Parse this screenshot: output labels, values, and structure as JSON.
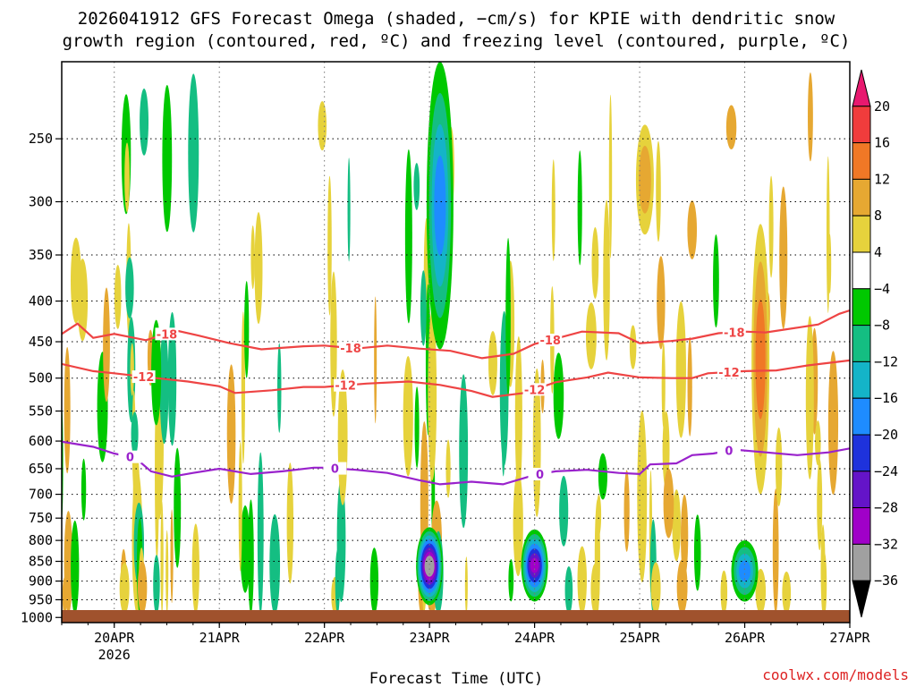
{
  "title": {
    "line1": "2026041912 GFS Forecast Omega (shaded, −cm/s) for KPIE with dendritic snow",
    "line2": "growth region (contoured, red, ºC) and freezing level (contoured, purple, ºC)"
  },
  "credit": "coolwx.com/models",
  "colors": {
    "dgz": "#ee4444",
    "freezing": "#9922cc",
    "ground": "#a0522d"
  },
  "chart_data": {
    "type": "heatmap",
    "xlabel": "Forecast Time (UTC)",
    "ylabel": "",
    "x_ticks": [
      {
        "day": 1,
        "label": "20APR",
        "sub": "2026"
      },
      {
        "day": 2,
        "label": "21APR",
        "sub": ""
      },
      {
        "day": 3,
        "label": "22APR",
        "sub": ""
      },
      {
        "day": 4,
        "label": "23APR",
        "sub": ""
      },
      {
        "day": 5,
        "label": "24APR",
        "sub": ""
      },
      {
        "day": 6,
        "label": "25APR",
        "sub": ""
      },
      {
        "day": 7,
        "label": "26APR",
        "sub": ""
      },
      {
        "day": 8,
        "label": "27APR",
        "sub": ""
      }
    ],
    "xlim_days": [
      0.5,
      8.0
    ],
    "y_ticks": [
      250,
      300,
      350,
      400,
      450,
      500,
      550,
      600,
      650,
      700,
      750,
      800,
      850,
      900,
      950,
      1000
    ],
    "ylim_hpa": [
      200,
      1015
    ],
    "y_scale": "log",
    "grid": true,
    "colorbar": {
      "labels": [
        "20",
        "16",
        "12",
        "8",
        "4",
        "−4",
        "−8",
        "−12",
        "−16",
        "−20",
        "−24",
        "−28",
        "−32",
        "−36"
      ],
      "colors": [
        "#e8196f",
        "#f03c3c",
        "#f07826",
        "#e6a832",
        "#e6d23c",
        "#ffffff",
        "#00c800",
        "#14be82",
        "#14b4c8",
        "#1e8cff",
        "#1e32dc",
        "#6414c8",
        "#a000c8",
        "#a0a0a0",
        "#000000"
      ]
    },
    "contours": [
      {
        "label": "-18",
        "color": "#ee4444",
        "points": [
          [
            0.5,
            440
          ],
          [
            0.65,
            427
          ],
          [
            0.8,
            445
          ],
          [
            1.0,
            440
          ],
          [
            1.3,
            448
          ],
          [
            1.6,
            436
          ],
          [
            1.8,
            442
          ],
          [
            2.1,
            452
          ],
          [
            2.4,
            460
          ],
          [
            2.8,
            456
          ],
          [
            3.0,
            455
          ],
          [
            3.3,
            459
          ],
          [
            3.6,
            455
          ],
          [
            3.9,
            459
          ],
          [
            4.2,
            462
          ],
          [
            4.5,
            472
          ],
          [
            4.8,
            466
          ],
          [
            5.0,
            453
          ],
          [
            5.2,
            446
          ],
          [
            5.45,
            437
          ],
          [
            5.8,
            439
          ],
          [
            6.0,
            452
          ],
          [
            6.3,
            449
          ],
          [
            6.5,
            446
          ],
          [
            6.75,
            439
          ],
          [
            7.0,
            437
          ],
          [
            7.2,
            438
          ],
          [
            7.5,
            432
          ],
          [
            7.7,
            428
          ],
          [
            7.9,
            415
          ],
          [
            8.0,
            411
          ]
        ],
        "label_at": [
          1.5,
          3.25,
          5.15,
          6.9
        ]
      },
      {
        "label": "-12",
        "color": "#ee4444",
        "points": [
          [
            0.5,
            480
          ],
          [
            0.8,
            490
          ],
          [
            1.0,
            493
          ],
          [
            1.4,
            500
          ],
          [
            1.7,
            505
          ],
          [
            2.0,
            512
          ],
          [
            2.15,
            522
          ],
          [
            2.5,
            518
          ],
          [
            2.8,
            513
          ],
          [
            3.0,
            513
          ],
          [
            3.4,
            508
          ],
          [
            3.8,
            505
          ],
          [
            4.1,
            510
          ],
          [
            4.4,
            519
          ],
          [
            4.6,
            528
          ],
          [
            4.9,
            522
          ],
          [
            5.2,
            506
          ],
          [
            5.5,
            499
          ],
          [
            5.7,
            492
          ],
          [
            6.0,
            499
          ],
          [
            6.3,
            500
          ],
          [
            6.5,
            500
          ],
          [
            6.65,
            493
          ],
          [
            7.0,
            490
          ],
          [
            7.3,
            489
          ],
          [
            7.6,
            482
          ],
          [
            8.0,
            475
          ]
        ],
        "label_at": [
          1.28,
          3.2,
          5.0,
          6.85
        ]
      },
      {
        "label": "0",
        "color": "#9922cc",
        "points": [
          [
            0.5,
            601
          ],
          [
            0.8,
            610
          ],
          [
            1.0,
            622
          ],
          [
            1.2,
            630
          ],
          [
            1.35,
            655
          ],
          [
            1.55,
            665
          ],
          [
            1.75,
            658
          ],
          [
            2.0,
            650
          ],
          [
            2.3,
            660
          ],
          [
            2.6,
            655
          ],
          [
            2.9,
            648
          ],
          [
            3.0,
            648
          ],
          [
            3.3,
            652
          ],
          [
            3.6,
            658
          ],
          [
            3.9,
            672
          ],
          [
            4.1,
            680
          ],
          [
            4.4,
            675
          ],
          [
            4.7,
            680
          ],
          [
            5.0,
            662
          ],
          [
            5.2,
            655
          ],
          [
            5.5,
            652
          ],
          [
            5.8,
            658
          ],
          [
            6.0,
            660
          ],
          [
            6.1,
            642
          ],
          [
            6.35,
            640
          ],
          [
            6.5,
            625
          ],
          [
            6.7,
            622
          ],
          [
            6.9,
            615
          ],
          [
            7.2,
            620
          ],
          [
            7.5,
            625
          ],
          [
            7.8,
            620
          ],
          [
            8.0,
            613
          ]
        ],
        "label_at": [
          1.15,
          3.1,
          5.05,
          6.85
        ]
      }
    ],
    "omega_features": [
      {
        "day": 4.0,
        "p_top": 770,
        "p_bot": 965,
        "peak": -36
      },
      {
        "day": 5.0,
        "p_top": 775,
        "p_bot": 955,
        "peak": -28
      },
      {
        "day": 7.0,
        "p_top": 800,
        "p_bot": 955,
        "peak": -16
      },
      {
        "day": 7.15,
        "p_top": 320,
        "p_bot": 700,
        "peak": 12
      },
      {
        "day": 6.05,
        "p_top": 240,
        "p_bot": 330,
        "peak": 8
      },
      {
        "day": 4.1,
        "p_top": 200,
        "p_bot": 460,
        "peak": -16
      }
    ]
  }
}
